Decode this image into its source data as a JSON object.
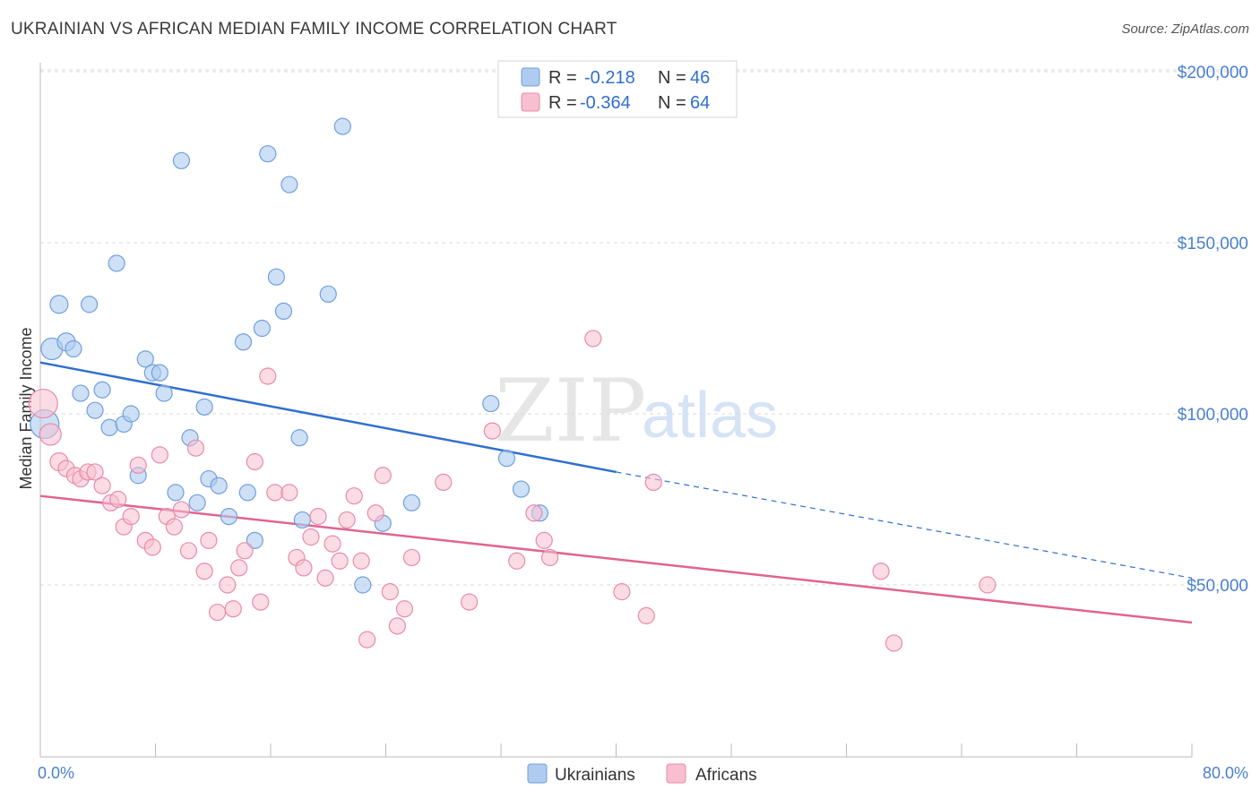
{
  "header": {
    "title": "UKRAINIAN VS AFRICAN MEDIAN FAMILY INCOME CORRELATION CHART",
    "source": "Source: ZipAtlas.com"
  },
  "watermark": {
    "zip": "ZIP",
    "atlas": "atlas"
  },
  "colors": {
    "ukrainians_fill": "#aecbf0",
    "ukrainians_stroke": "#6f9fdc",
    "ukrainians_line": "#2f6fcf",
    "africans_fill": "#f7bfd0",
    "africans_stroke": "#e98aa9",
    "africans_line": "#e0648e",
    "grid": "#d9d9d9",
    "tick_label": "#4a7fd0"
  },
  "legend": {
    "rows": [
      {
        "r_label": "R =",
        "r_value": "-0.218",
        "n_label": "N =",
        "n_value": "46"
      },
      {
        "r_label": "R =",
        "r_value": "-0.364",
        "n_label": "N =",
        "n_value": "64"
      }
    ]
  },
  "chart_data": {
    "type": "scatter",
    "title": "UKRAINIAN VS AFRICAN MEDIAN FAMILY INCOME CORRELATION CHART",
    "xlabel": "",
    "ylabel": "Median Family Income",
    "xlim": [
      0,
      80
    ],
    "ylim": [
      5000,
      210000
    ],
    "x_tick_labels": [
      "0.0%",
      "80.0%"
    ],
    "y_ticks": [
      50000,
      100000,
      150000,
      200000
    ],
    "y_tick_labels": [
      "$50,000",
      "$100,000",
      "$150,000",
      "$200,000"
    ],
    "grid": true,
    "legend_position": "top-center",
    "series": [
      {
        "name": "Ukrainians",
        "r": -0.218,
        "n": 46,
        "trend": {
          "x0": 0,
          "y0": 115000,
          "x1": 40,
          "y1": 83000,
          "dashed_to_x": 80,
          "dashed_to_y": 52000
        },
        "points": [
          [
            0.3,
            97000,
            16
          ],
          [
            0.8,
            119000,
            12
          ],
          [
            1.3,
            132000,
            10
          ],
          [
            1.8,
            121000,
            10
          ],
          [
            2.3,
            119000,
            9
          ],
          [
            2.8,
            106000,
            9
          ],
          [
            3.4,
            132000,
            9
          ],
          [
            3.8,
            101000,
            9
          ],
          [
            4.3,
            107000,
            9
          ],
          [
            4.8,
            96000,
            9
          ],
          [
            5.3,
            144000,
            9
          ],
          [
            5.8,
            97000,
            9
          ],
          [
            6.3,
            100000,
            9
          ],
          [
            6.8,
            82000,
            9
          ],
          [
            7.3,
            116000,
            9
          ],
          [
            7.8,
            112000,
            9
          ],
          [
            8.3,
            112000,
            9
          ],
          [
            8.6,
            106000,
            9
          ],
          [
            9.4,
            77000,
            9
          ],
          [
            9.8,
            174000,
            9
          ],
          [
            10.4,
            93000,
            9
          ],
          [
            10.9,
            74000,
            9
          ],
          [
            11.4,
            102000,
            9
          ],
          [
            11.7,
            81000,
            9
          ],
          [
            12.4,
            79000,
            9
          ],
          [
            13.1,
            70000,
            9
          ],
          [
            14.1,
            121000,
            9
          ],
          [
            14.4,
            77000,
            9
          ],
          [
            14.9,
            63000,
            9
          ],
          [
            15.4,
            125000,
            9
          ],
          [
            15.8,
            176000,
            9
          ],
          [
            16.4,
            140000,
            9
          ],
          [
            16.9,
            130000,
            9
          ],
          [
            17.3,
            167000,
            9
          ],
          [
            18.0,
            93000,
            9
          ],
          [
            18.2,
            69000,
            9
          ],
          [
            20.0,
            135000,
            9
          ],
          [
            21.0,
            184000,
            9
          ],
          [
            22.4,
            50000,
            9
          ],
          [
            23.8,
            68000,
            9
          ],
          [
            25.8,
            74000,
            9
          ],
          [
            31.3,
            103000,
            9
          ],
          [
            32.4,
            87000,
            9
          ],
          [
            33.4,
            78000,
            9
          ],
          [
            34.7,
            71000,
            9
          ]
        ]
      },
      {
        "name": "Africans",
        "r": -0.364,
        "n": 64,
        "trend": {
          "x0": 0,
          "y0": 76000,
          "x1": 80,
          "y1": 39000
        },
        "points": [
          [
            0.2,
            103000,
            16
          ],
          [
            0.7,
            94000,
            12
          ],
          [
            1.3,
            86000,
            10
          ],
          [
            1.8,
            84000,
            9
          ],
          [
            2.4,
            82000,
            9
          ],
          [
            2.8,
            81000,
            9
          ],
          [
            3.3,
            83000,
            9
          ],
          [
            3.8,
            83000,
            9
          ],
          [
            4.3,
            79000,
            9
          ],
          [
            4.9,
            74000,
            9
          ],
          [
            5.4,
            75000,
            9
          ],
          [
            5.8,
            67000,
            9
          ],
          [
            6.3,
            70000,
            9
          ],
          [
            6.8,
            85000,
            9
          ],
          [
            7.3,
            63000,
            9
          ],
          [
            7.8,
            61000,
            9
          ],
          [
            8.3,
            88000,
            9
          ],
          [
            8.8,
            70000,
            9
          ],
          [
            9.3,
            67000,
            9
          ],
          [
            9.8,
            72000,
            9
          ],
          [
            10.3,
            60000,
            9
          ],
          [
            10.8,
            90000,
            9
          ],
          [
            11.4,
            54000,
            9
          ],
          [
            11.7,
            63000,
            9
          ],
          [
            12.3,
            42000,
            9
          ],
          [
            13.0,
            50000,
            9
          ],
          [
            13.4,
            43000,
            9
          ],
          [
            13.8,
            55000,
            9
          ],
          [
            14.2,
            60000,
            9
          ],
          [
            14.9,
            86000,
            9
          ],
          [
            15.3,
            45000,
            9
          ],
          [
            15.8,
            111000,
            9
          ],
          [
            16.3,
            77000,
            9
          ],
          [
            17.3,
            77000,
            9
          ],
          [
            17.8,
            58000,
            9
          ],
          [
            18.3,
            55000,
            9
          ],
          [
            18.8,
            64000,
            9
          ],
          [
            19.3,
            70000,
            9
          ],
          [
            19.8,
            52000,
            9
          ],
          [
            20.3,
            62000,
            9
          ],
          [
            20.8,
            57000,
            9
          ],
          [
            21.3,
            69000,
            9
          ],
          [
            21.8,
            76000,
            9
          ],
          [
            22.3,
            57000,
            9
          ],
          [
            22.7,
            34000,
            9
          ],
          [
            23.3,
            71000,
            9
          ],
          [
            23.8,
            82000,
            9
          ],
          [
            24.3,
            48000,
            9
          ],
          [
            24.8,
            38000,
            9
          ],
          [
            25.3,
            43000,
            9
          ],
          [
            25.8,
            58000,
            9
          ],
          [
            28.0,
            80000,
            9
          ],
          [
            29.8,
            45000,
            9
          ],
          [
            31.4,
            95000,
            9
          ],
          [
            33.1,
            57000,
            9
          ],
          [
            34.3,
            71000,
            9
          ],
          [
            35.0,
            63000,
            9
          ],
          [
            35.4,
            58000,
            9
          ],
          [
            38.4,
            122000,
            9
          ],
          [
            40.4,
            48000,
            9
          ],
          [
            42.1,
            41000,
            9
          ],
          [
            42.6,
            80000,
            9
          ],
          [
            58.4,
            54000,
            9
          ],
          [
            59.3,
            33000,
            9
          ],
          [
            65.8,
            50000,
            9
          ]
        ]
      }
    ]
  }
}
